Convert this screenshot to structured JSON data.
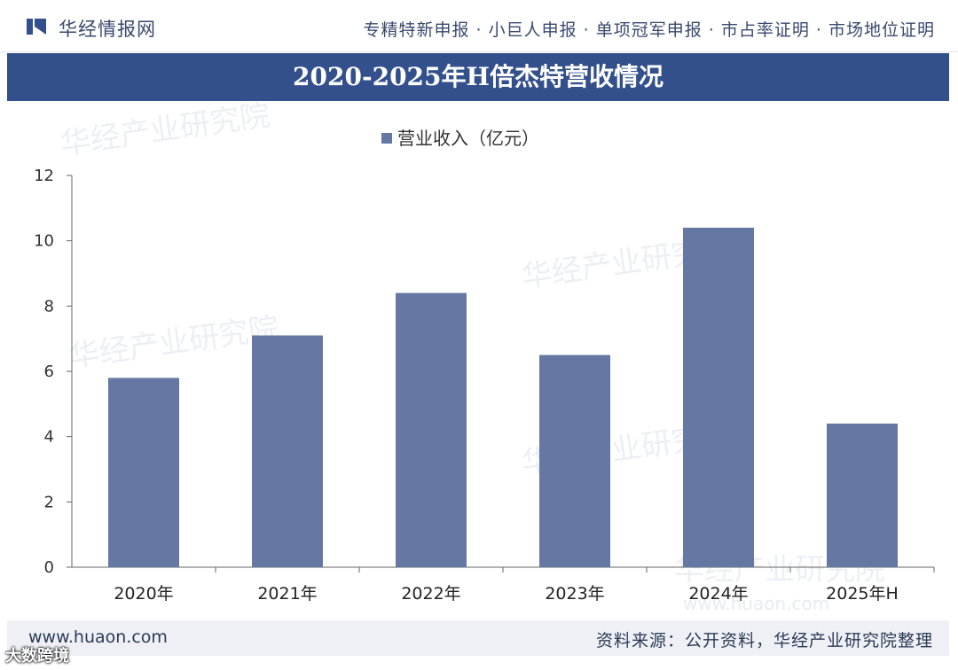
{
  "header": {
    "brand": "华经情报网",
    "services": "专精特新申报 · 小巨人申报 · 单项冠军申报 · 市占率证明 · 市场地位证明"
  },
  "chart_data": {
    "type": "bar",
    "title": "2020-2025年H倍杰特营收情况",
    "categories": [
      "2020年",
      "2021年",
      "2022年",
      "2023年",
      "2024年",
      "2025年H"
    ],
    "series": [
      {
        "name": "营业收入（亿元）",
        "values": [
          5.8,
          7.1,
          8.4,
          6.5,
          10.4,
          4.4
        ]
      }
    ],
    "ylim": [
      0,
      12
    ],
    "yticks": [
      "0",
      "2",
      "4",
      "6",
      "8",
      "10",
      "12"
    ],
    "xlabel": "",
    "ylabel": "",
    "legend_position": "top-center",
    "grid": false,
    "bar_color": "#6577a3",
    "watermark": "华经产业研究院",
    "watermark_url": "www.huaon.com"
  },
  "footer": {
    "url": "www.huaon.com",
    "source": "资料来源：公开资料，华经产业研究院整理"
  },
  "corner_mark": "大数跨境",
  "colors": {
    "title_band": "#33508c",
    "bar": "#6577a3",
    "axis": "#555555",
    "text": "#2d3a56"
  }
}
